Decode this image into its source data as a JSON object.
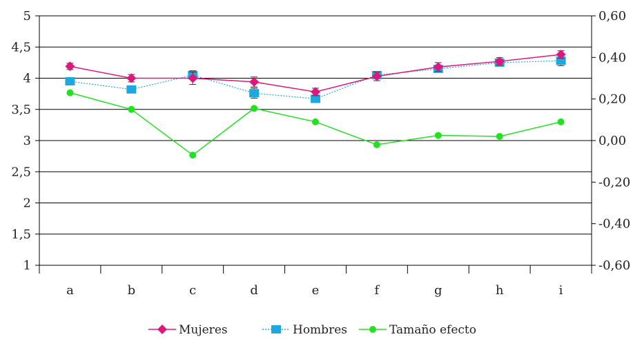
{
  "chart_data": {
    "type": "line",
    "categories": [
      "a",
      "b",
      "c",
      "d",
      "e",
      "f",
      "g",
      "h",
      "i"
    ],
    "y_left": {
      "min": 1,
      "max": 5,
      "step": 0.5,
      "ticks": [
        "1",
        "1,5",
        "2",
        "2,5",
        "3",
        "3,5",
        "4",
        "4,5",
        "5"
      ]
    },
    "y_right": {
      "min": -0.6,
      "max": 0.6,
      "step": 0.2,
      "ticks": [
        "-0,60",
        "-0,40",
        "-0,20",
        "0,00",
        "0,20",
        "0,40",
        "0,60"
      ]
    },
    "grid": true,
    "legend_position": "bottom",
    "series": [
      {
        "name": "Mujeres",
        "axis": "left",
        "color": "#e0157d",
        "marker": "diamond",
        "line_style": "solid",
        "values": [
          4.19,
          4.0,
          4.0,
          3.94,
          3.78,
          4.03,
          4.18,
          4.27,
          4.38
        ],
        "error": [
          0.05,
          0.06,
          0.1,
          0.08,
          0.06,
          0.07,
          0.07,
          0.06,
          0.06
        ]
      },
      {
        "name": "Hombres",
        "axis": "left",
        "color": "#1ea7e1",
        "marker": "square",
        "line_style": "dotted",
        "values": [
          3.95,
          3.82,
          4.05,
          3.76,
          3.67,
          4.05,
          4.15,
          4.25,
          4.28
        ],
        "error": [
          0.0,
          0.05,
          0.07,
          0.08,
          0.06,
          0.0,
          0.0,
          0.0,
          0.08
        ]
      },
      {
        "name": "Tamaño efecto",
        "axis": "right",
        "color": "#22e022",
        "marker": "circle",
        "line_style": "solid",
        "values": [
          0.23,
          0.15,
          -0.07,
          0.155,
          0.09,
          -0.02,
          0.025,
          0.02,
          0.09
        ]
      }
    ]
  }
}
